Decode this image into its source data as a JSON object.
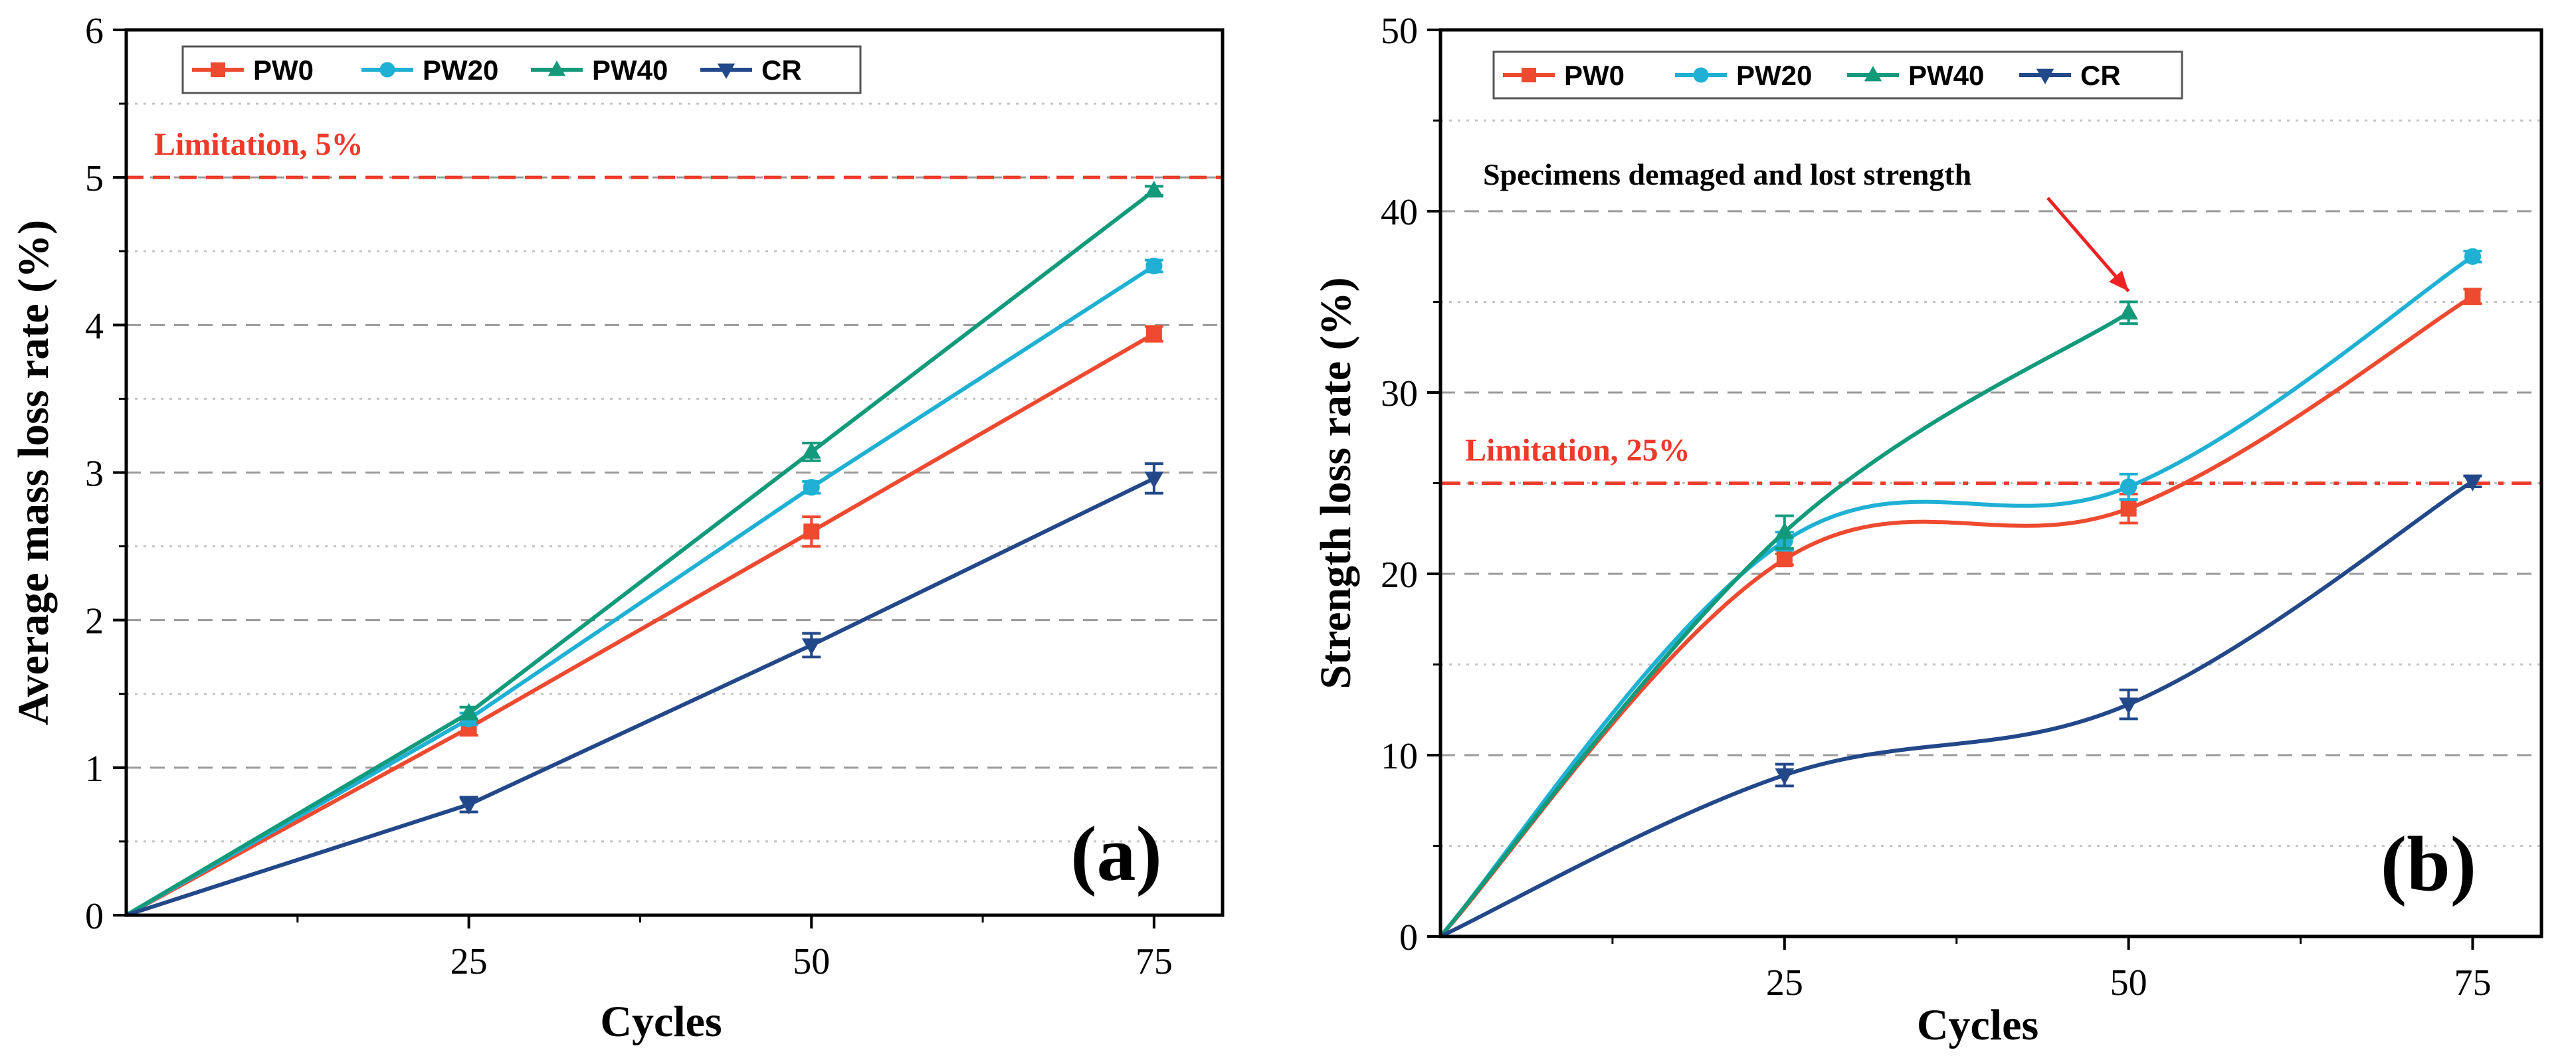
{
  "chart_data": [
    {
      "type": "line",
      "panel_label": "(a)",
      "xlabel": "Cycles",
      "ylabel": "Average mass loss rate (%)",
      "xlim": [
        0,
        80
      ],
      "ylim": [
        0,
        6
      ],
      "x_ticks": [
        25,
        50,
        75
      ],
      "y_ticks": [
        0,
        1,
        2,
        3,
        4,
        5,
        6
      ],
      "limit": {
        "value": 5,
        "label": "Limitation, 5%",
        "color": "#ee3a2a"
      },
      "legend_position": "top-left",
      "series": [
        {
          "name": "PW0",
          "color": "#ee4a30",
          "marker": "square",
          "x": [
            0,
            25,
            50,
            75
          ],
          "y": [
            0,
            1.27,
            2.6,
            3.94
          ],
          "err": [
            0,
            0.05,
            0.1,
            0.05
          ],
          "smooth": false
        },
        {
          "name": "PW20",
          "color": "#1fb0d4",
          "marker": "circle",
          "x": [
            0,
            25,
            50,
            75
          ],
          "y": [
            0,
            1.33,
            2.9,
            4.4
          ],
          "err": [
            0,
            0.04,
            0.04,
            0.04
          ],
          "smooth": false
        },
        {
          "name": "PW40",
          "color": "#129a7a",
          "marker": "triangle-up",
          "x": [
            0,
            25,
            50,
            75
          ],
          "y": [
            0,
            1.37,
            3.14,
            4.91
          ],
          "err": [
            0,
            0.04,
            0.06,
            0.03
          ],
          "smooth": false
        },
        {
          "name": "CR",
          "color": "#23488a",
          "marker": "triangle-down",
          "x": [
            0,
            25,
            50,
            75
          ],
          "y": [
            0,
            0.75,
            1.83,
            2.96
          ],
          "err": [
            0,
            0.05,
            0.08,
            0.1
          ],
          "smooth": false
        }
      ]
    },
    {
      "type": "line",
      "panel_label": "(b)",
      "xlabel": "Cycles",
      "ylabel": "Strength loss rate (%)",
      "xlim": [
        0,
        80
      ],
      "ylim": [
        0,
        50
      ],
      "x_ticks": [
        25,
        50,
        75
      ],
      "y_ticks": [
        0,
        10,
        20,
        30,
        40,
        50
      ],
      "limit": {
        "value": 25,
        "label": "Limitation, 25%",
        "color": "#ee3a2a"
      },
      "annotation": {
        "text": "Specimens demaged and lost strength",
        "target_series": "PW40",
        "target_x": 50
      },
      "legend_position": "top-left",
      "series": [
        {
          "name": "PW0",
          "color": "#ee4a30",
          "marker": "square",
          "x": [
            0,
            25,
            50,
            75
          ],
          "y": [
            0,
            20.8,
            23.6,
            35.3
          ],
          "err": [
            0,
            0.3,
            0.8,
            0.4
          ],
          "smooth": true
        },
        {
          "name": "PW20",
          "color": "#1fb0d4",
          "marker": "circle",
          "x": [
            0,
            25,
            50,
            75
          ],
          "y": [
            0,
            21.8,
            24.8,
            37.5
          ],
          "err": [
            0,
            0.5,
            0.7,
            0.3
          ],
          "smooth": true
        },
        {
          "name": "PW40",
          "color": "#129a7a",
          "marker": "triangle-up",
          "x": [
            0,
            25,
            50
          ],
          "y": [
            0,
            22.3,
            34.4
          ],
          "err": [
            0,
            0.9,
            0.6
          ],
          "smooth": true
        },
        {
          "name": "CR",
          "color": "#23488a",
          "marker": "triangle-down",
          "x": [
            0,
            25,
            50,
            75
          ],
          "y": [
            0,
            8.9,
            12.8,
            25.1
          ],
          "err": [
            0,
            0.6,
            0.8,
            0.3
          ],
          "smooth": true
        }
      ]
    }
  ]
}
